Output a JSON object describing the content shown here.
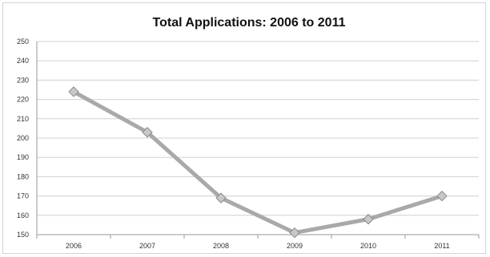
{
  "chart_data": {
    "type": "line",
    "title": "Total Applications: 2006 to 2011",
    "xlabel": "",
    "ylabel": "",
    "categories": [
      "2006",
      "2007",
      "2008",
      "2009",
      "2010",
      "2011"
    ],
    "series": [
      {
        "values": [
          224,
          203,
          169,
          151,
          158,
          170
        ]
      }
    ],
    "ylim": [
      150,
      250
    ],
    "yticks": [
      "150",
      "160",
      "170",
      "180",
      "190",
      "200",
      "210",
      "220",
      "230",
      "240",
      "250"
    ],
    "grid": true,
    "legend": "none",
    "colors": {
      "line": "#a9a9a9",
      "marker": "#c8c8c8",
      "marker_edge": "#8a8a8a",
      "grid": "#d0d0d0"
    }
  }
}
